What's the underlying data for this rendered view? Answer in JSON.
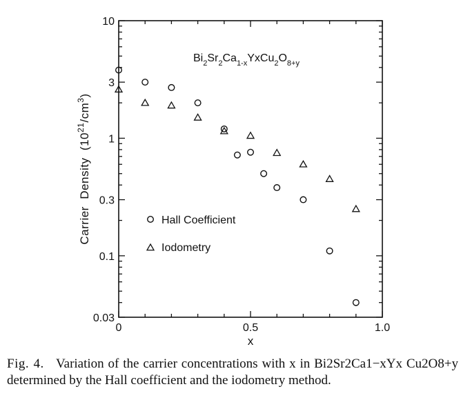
{
  "chart_data": {
    "type": "scatter",
    "y_scale": "log",
    "title": "Bi2Sr2Ca1-xYxCu2O8+y",
    "xlabel": "x",
    "ylabel": "Carrier Density (10^21/cm^3)",
    "xlim": [
      0,
      1.0
    ],
    "ylim": [
      0.03,
      10
    ],
    "x_ticks": [
      0,
      0.5,
      1.0
    ],
    "x_tick_labels": [
      "0",
      "0.5",
      "1.0"
    ],
    "y_ticks": [
      0.03,
      0.1,
      0.3,
      1,
      3,
      10
    ],
    "y_tick_labels": [
      "0.03",
      "0.1",
      "0.3",
      "1",
      "3",
      "10"
    ],
    "grid": false,
    "legend_position": "left-middle",
    "series": [
      {
        "name": "Hall Coefficient",
        "marker": "circle",
        "points": [
          {
            "x": 0.0,
            "y": 3.8
          },
          {
            "x": 0.1,
            "y": 3.0
          },
          {
            "x": 0.2,
            "y": 2.7
          },
          {
            "x": 0.3,
            "y": 2.0
          },
          {
            "x": 0.4,
            "y": 1.2
          },
          {
            "x": 0.45,
            "y": 0.72
          },
          {
            "x": 0.5,
            "y": 0.76
          },
          {
            "x": 0.55,
            "y": 0.5
          },
          {
            "x": 0.6,
            "y": 0.38
          },
          {
            "x": 0.7,
            "y": 0.3
          },
          {
            "x": 0.8,
            "y": 0.11
          },
          {
            "x": 0.9,
            "y": 0.04
          }
        ]
      },
      {
        "name": "Iodometry",
        "marker": "triangle",
        "points": [
          {
            "x": 0.0,
            "y": 2.6
          },
          {
            "x": 0.1,
            "y": 2.0
          },
          {
            "x": 0.2,
            "y": 1.9
          },
          {
            "x": 0.3,
            "y": 1.5
          },
          {
            "x": 0.4,
            "y": 1.15
          },
          {
            "x": 0.5,
            "y": 1.05
          },
          {
            "x": 0.6,
            "y": 0.75
          },
          {
            "x": 0.7,
            "y": 0.6
          },
          {
            "x": 0.8,
            "y": 0.45
          },
          {
            "x": 0.9,
            "y": 0.25
          }
        ]
      }
    ]
  },
  "caption": {
    "label": "Fig. 4.",
    "text": "Variation of the carrier concentrations with x in Bi2Sr2Ca1−xYx Cu2O8+y determined by the Hall coefficient and the iodometry method."
  }
}
